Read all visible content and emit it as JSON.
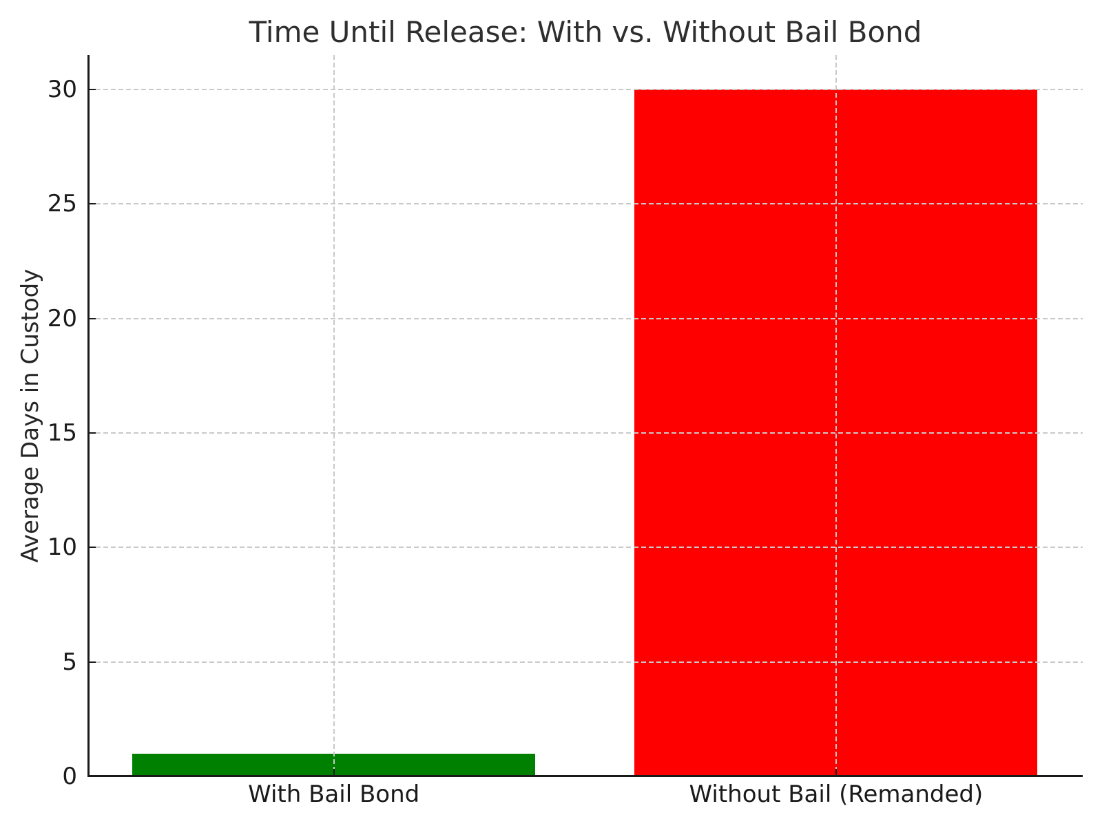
{
  "chart_data": {
    "type": "bar",
    "title": "Time Until Release: With vs. Without Bail Bond",
    "ylabel": "Average Days in Custody",
    "xlabel": "",
    "categories": [
      "With Bail Bond",
      "Without Bail (Remanded)"
    ],
    "values": [
      1,
      30
    ],
    "bar_colors": [
      "#008000",
      "#ff0000"
    ],
    "bar_centers_pct": [
      24.7,
      75.2
    ],
    "bar_width_pct": 40.5,
    "yticks": [
      0,
      5,
      10,
      15,
      20,
      25,
      30
    ],
    "ylim": [
      0,
      31.5
    ],
    "grid": {
      "on": true,
      "style": "dashed",
      "color": "#c9c9c9",
      "axes": "both",
      "drawn_over_bars": true
    },
    "legend_position": "none",
    "colors": {
      "spine": "#1a1a1a",
      "title_text": "#2e2e2e",
      "tick_text": "#1a1a1a",
      "background": "#ffffff"
    }
  }
}
